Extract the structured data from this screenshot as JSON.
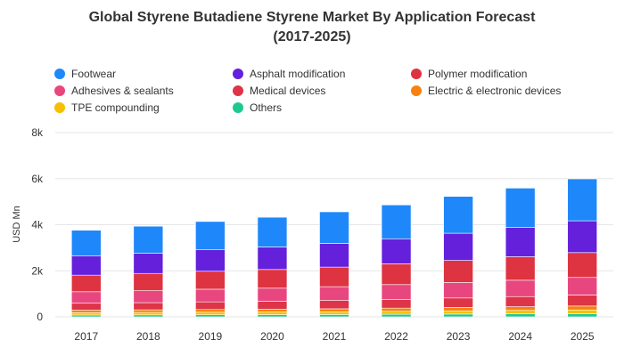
{
  "chart_data": {
    "type": "bar",
    "stacked": true,
    "title_line1": "Global Styrene Butadiene Styrene Market By Application Forecast",
    "title_line2": "(2017-2025)",
    "ylabel": "USD Mn",
    "ylim": [
      0,
      8000
    ],
    "yticks": [
      0,
      2000,
      4000,
      6000,
      8000
    ],
    "ytick_labels": [
      "0",
      "2k",
      "4k",
      "6k",
      "8k"
    ],
    "grid": true,
    "legend_position": "top",
    "categories": [
      "2017",
      "2018",
      "2019",
      "2020",
      "2021",
      "2022",
      "2023",
      "2024",
      "2025"
    ],
    "series": [
      {
        "name": "Others",
        "color": "#1ec98f",
        "values": [
          80,
          85,
          90,
          95,
          100,
          110,
          120,
          130,
          140
        ]
      },
      {
        "name": "TPE compounding",
        "color": "#f6c000",
        "values": [
          100,
          105,
          110,
          115,
          120,
          130,
          140,
          150,
          160
        ]
      },
      {
        "name": "Electric & electronic devices",
        "color": "#f7820f",
        "values": [
          110,
          115,
          120,
          125,
          130,
          140,
          150,
          160,
          170
        ]
      },
      {
        "name": "Medical devices",
        "color": "#dd3447",
        "values": [
          300,
          310,
          330,
          340,
          360,
          380,
          410,
          440,
          480
        ]
      },
      {
        "name": "Adhesives & sealants",
        "color": "#e8467f",
        "values": [
          500,
          520,
          550,
          570,
          600,
          640,
          670,
          710,
          760
        ]
      },
      {
        "name": "Polymer modification",
        "color": "#de3340",
        "values": [
          720,
          750,
          780,
          810,
          850,
          900,
          960,
          1020,
          1080
        ]
      },
      {
        "name": "Asphalt modification",
        "color": "#6420db",
        "values": [
          830,
          880,
          930,
          980,
          1030,
          1090,
          1180,
          1280,
          1380
        ]
      },
      {
        "name": "Footwear",
        "color": "#1e88fa",
        "values": [
          1120,
          1170,
          1230,
          1290,
          1370,
          1470,
          1600,
          1700,
          1820
        ]
      }
    ],
    "legend_order": [
      "Footwear",
      "Asphalt modification",
      "Polymer modification",
      "Adhesives & sealants",
      "Medical devices",
      "Electric & electronic devices",
      "TPE compounding",
      "Others"
    ]
  }
}
